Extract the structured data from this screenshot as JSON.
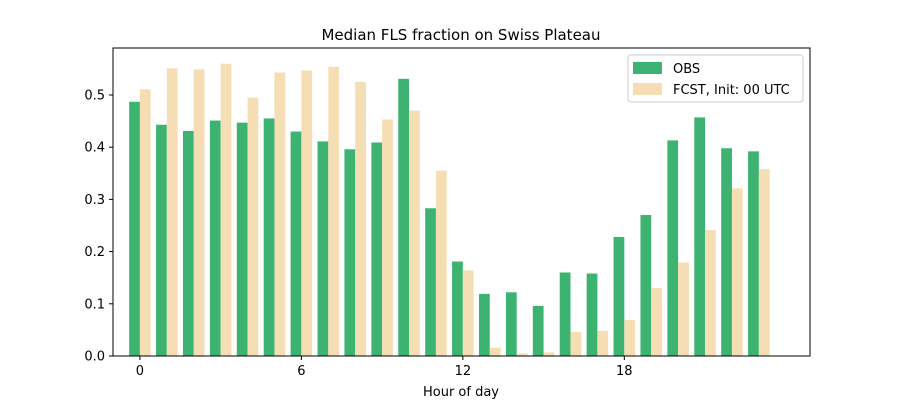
{
  "chart_data": {
    "type": "bar",
    "title": "Median FLS fraction on Swiss Plateau",
    "xlabel": "Hour of day",
    "ylabel": "",
    "x": [
      0,
      1,
      2,
      3,
      4,
      5,
      6,
      7,
      8,
      9,
      10,
      11,
      12,
      13,
      14,
      15,
      16,
      17,
      18,
      19,
      20,
      21,
      22,
      23
    ],
    "x_ticks": [
      0,
      6,
      12,
      18
    ],
    "y_ticks": [
      "0.0",
      "0.1",
      "0.2",
      "0.3",
      "0.4",
      "0.5"
    ],
    "xlim": [
      -1.0,
      24.9
    ],
    "ylim": [
      0,
      0.59
    ],
    "series": [
      {
        "name": "OBS",
        "color": "#3cb371",
        "values": [
          0.487,
          0.443,
          0.431,
          0.451,
          0.447,
          0.455,
          0.43,
          0.411,
          0.396,
          0.409,
          0.531,
          0.283,
          0.181,
          0.119,
          0.122,
          0.096,
          0.16,
          0.158,
          0.228,
          0.27,
          0.413,
          0.457,
          0.398,
          0.392
        ]
      },
      {
        "name": "FCST, Init: 00 UTC",
        "color": "#f5deb3",
        "values": [
          0.511,
          0.551,
          0.549,
          0.56,
          0.495,
          0.543,
          0.547,
          0.554,
          0.525,
          0.453,
          0.47,
          0.355,
          0.164,
          0.016,
          0.005,
          0.007,
          0.046,
          0.048,
          0.069,
          0.13,
          0.179,
          0.241,
          0.321,
          0.358
        ]
      }
    ],
    "legend_position": "top-right",
    "grid": false
  }
}
